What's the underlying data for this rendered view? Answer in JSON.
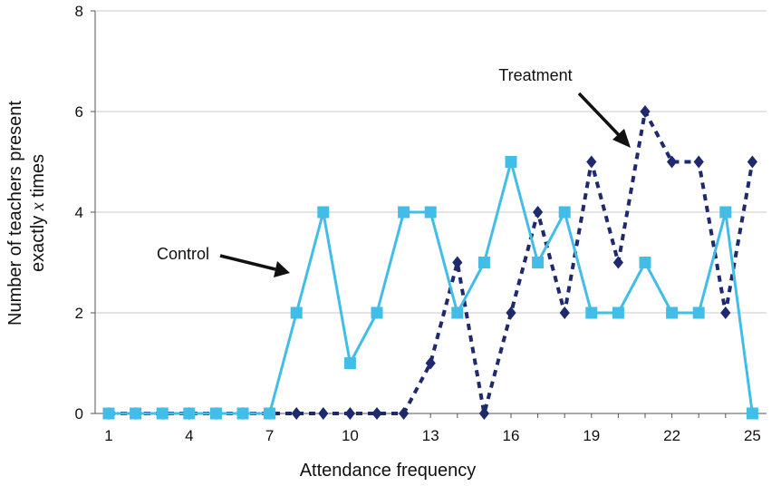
{
  "chart_data": {
    "type": "line",
    "xlabel": "Attendance frequency",
    "ylabel_line1": "Number of teachers present",
    "ylabel_line2_pre": "exactly ",
    "ylabel_line2_var": "x",
    "ylabel_line2_post": " times",
    "xlim": [
      1,
      25
    ],
    "ylim": [
      0,
      8
    ],
    "x_ticks": [
      1,
      4,
      7,
      10,
      13,
      16,
      19,
      22,
      25
    ],
    "y_ticks": [
      0,
      2,
      4,
      6,
      8
    ],
    "grid": true,
    "x": [
      1,
      2,
      3,
      4,
      5,
      6,
      7,
      8,
      9,
      10,
      11,
      12,
      13,
      14,
      15,
      16,
      17,
      18,
      19,
      20,
      21,
      22,
      23,
      24,
      25
    ],
    "series": [
      {
        "key": "control",
        "color": "#41bde8",
        "marker": "square",
        "dash": "solid",
        "values": [
          0,
          0,
          0,
          0,
          0,
          0,
          0,
          2,
          4,
          1,
          2,
          4,
          4,
          2,
          3,
          5,
          3,
          4,
          2,
          2,
          3,
          2,
          2,
          4,
          0
        ]
      },
      {
        "key": "treatment",
        "color": "#1f2a6e",
        "marker": "diamond",
        "dash": "dashed",
        "values": [
          0,
          0,
          0,
          0,
          0,
          0,
          0,
          0,
          0,
          0,
          0,
          0,
          1,
          3,
          0,
          2,
          4,
          2,
          5,
          3,
          6,
          5,
          5,
          2,
          5
        ]
      }
    ],
    "annotations": [
      {
        "key": "control",
        "text": "Control"
      },
      {
        "key": "treatment",
        "text": "Treatment"
      }
    ]
  }
}
